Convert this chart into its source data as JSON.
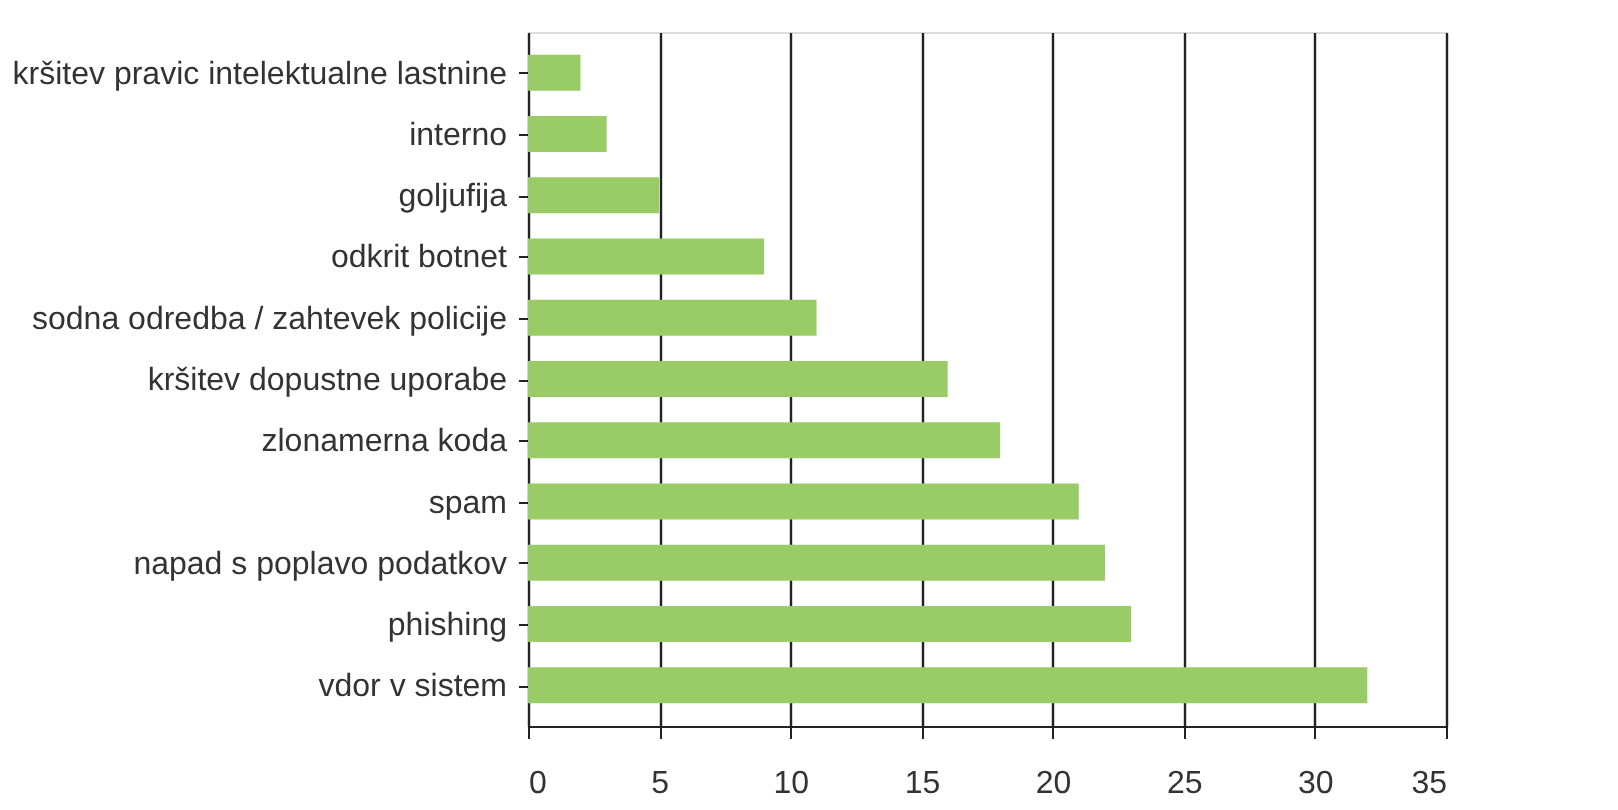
{
  "chart_data": {
    "type": "bar",
    "orientation": "horizontal",
    "categories": [
      "kršitev pravic intelektualne lastnine",
      "interno",
      "goljufija",
      "odkrit botnet",
      "sodna odredba / zahtevek policije",
      "kršitev dopustne uporabe",
      "zlonamerna koda",
      "spam",
      "napad s poplavo podatkov",
      "phishing",
      "vdor v sistem"
    ],
    "values": [
      2,
      3,
      5,
      9,
      11,
      16,
      18,
      21,
      22,
      23,
      32
    ],
    "color": "#99cc66",
    "xlim": [
      0,
      35
    ],
    "xticks": [
      0,
      5,
      10,
      15,
      20,
      25,
      30,
      35
    ],
    "grid": "x"
  }
}
